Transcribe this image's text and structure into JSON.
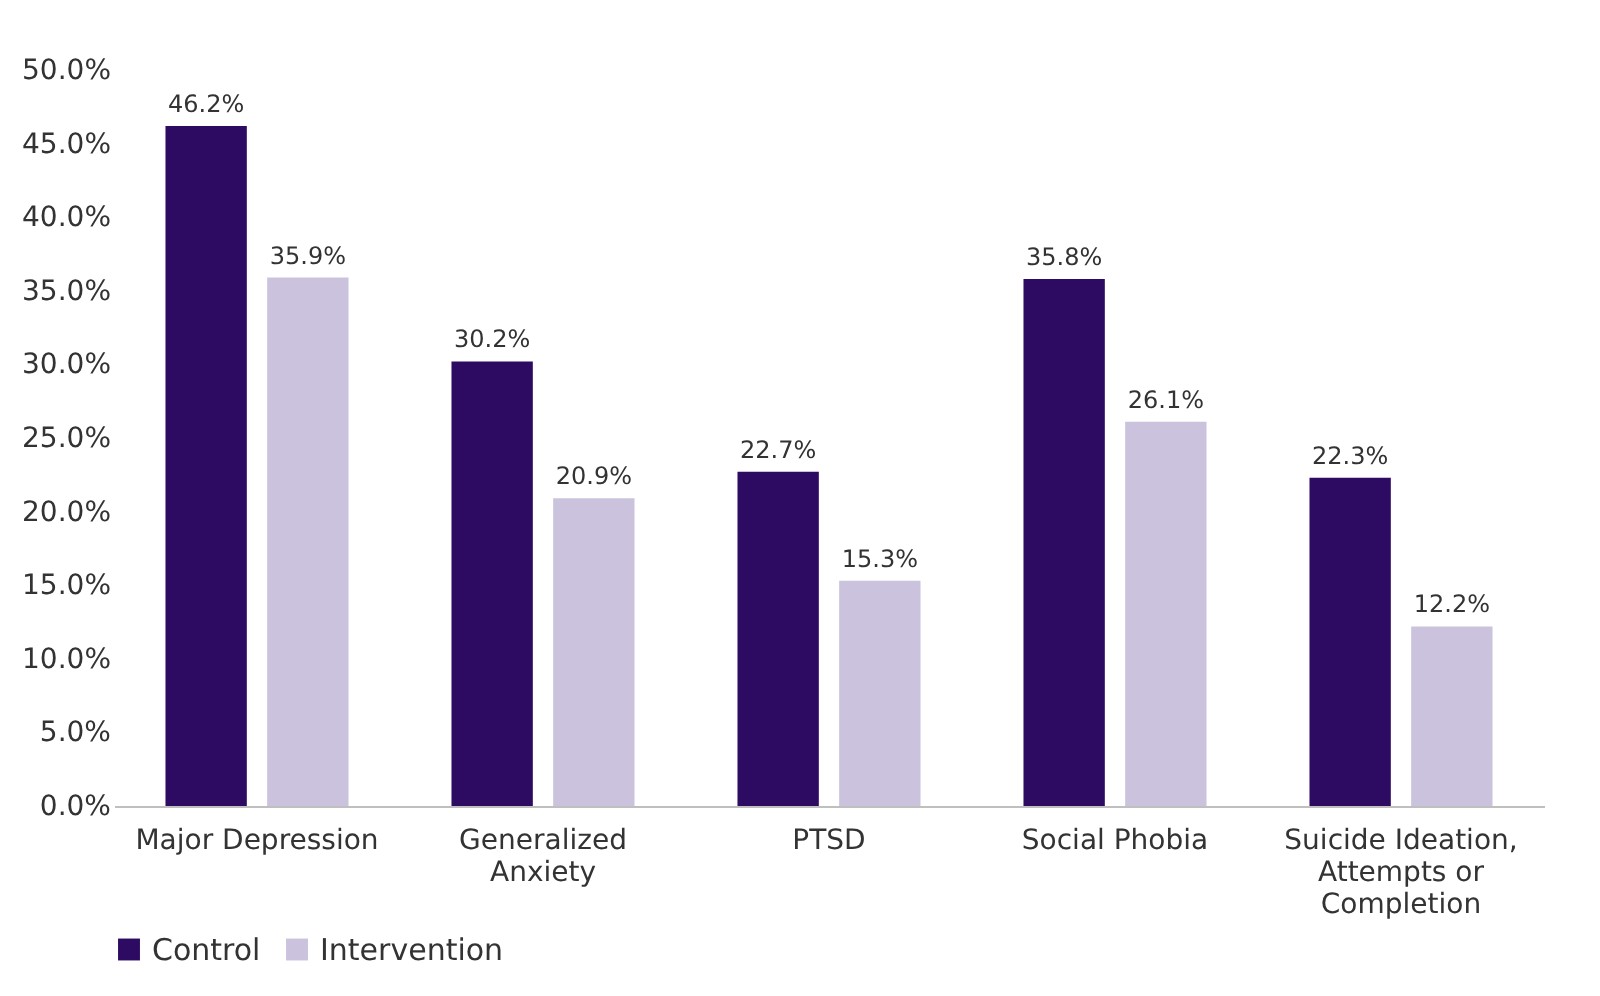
{
  "chart_data": {
    "type": "bar",
    "categories": [
      "Major Depression",
      "Generalized Anxiety",
      "PTSD",
      "Social Phobia",
      "Suicide Ideation, Attempts or Completion"
    ],
    "series": [
      {
        "name": "Control",
        "color": "#2e0b63",
        "values": [
          46.2,
          30.2,
          22.7,
          35.8,
          22.3
        ],
        "value_labels": [
          "46.2%",
          "30.2%",
          "22.7%",
          "35.8%",
          "22.3%"
        ]
      },
      {
        "name": "Intervention",
        "color": "#cbc3dd",
        "values": [
          35.9,
          20.9,
          15.3,
          26.1,
          12.2
        ],
        "value_labels": [
          "35.9%",
          "20.9%",
          "15.3%",
          "26.1%",
          "12.2%"
        ]
      }
    ],
    "ylim": [
      0,
      50
    ],
    "yticks": [
      {
        "value": 0,
        "label": "0.0%"
      },
      {
        "value": 5,
        "label": "5.0%"
      },
      {
        "value": 10,
        "label": "10.0%"
      },
      {
        "value": 15,
        "label": "15.0%"
      },
      {
        "value": 20,
        "label": "20.0%"
      },
      {
        "value": 25,
        "label": "25.0%"
      },
      {
        "value": 30,
        "label": "30.0%"
      },
      {
        "value": 35,
        "label": "35.0%"
      },
      {
        "value": 40,
        "label": "40.0%"
      },
      {
        "value": 45,
        "label": "45.0%"
      },
      {
        "value": 50,
        "label": "50.0%"
      }
    ],
    "grid": false,
    "legend": "bottom left"
  }
}
